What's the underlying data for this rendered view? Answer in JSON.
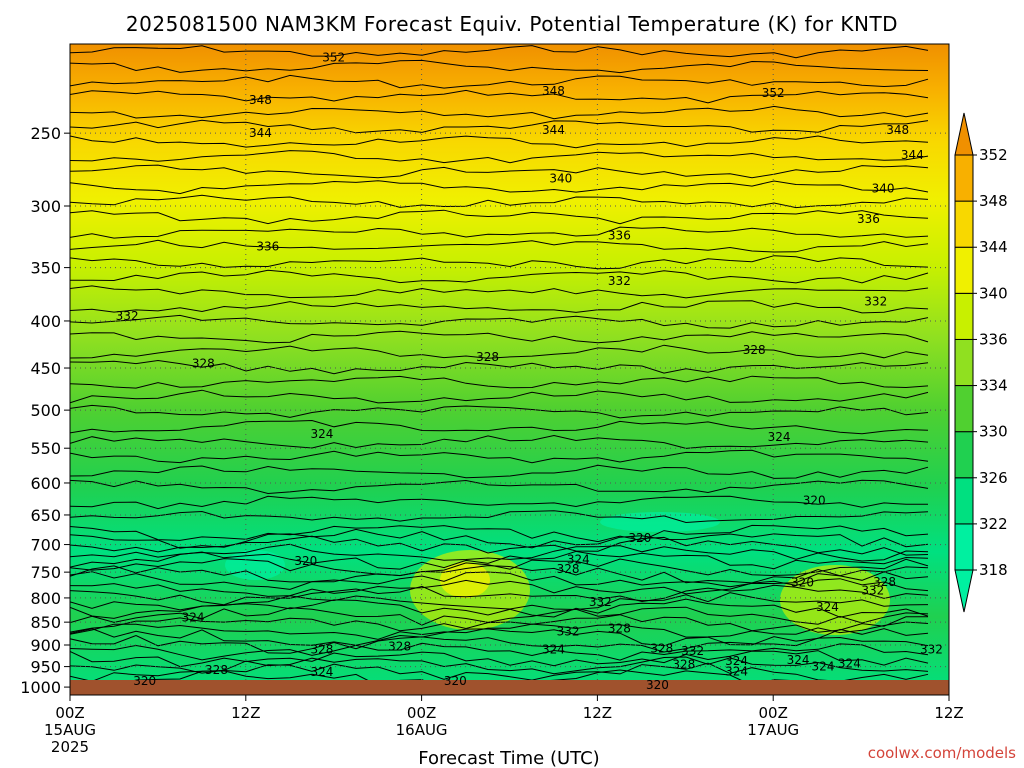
{
  "page": {
    "title": "2025081500 NAM3KM Forecast Equiv. Potential Temperature (K) for KNTD",
    "credit": "coolwx.com/models"
  },
  "chart_data": {
    "type": "heatmap",
    "title": "2025081500 NAM3KM Forecast Equiv. Potential Temperature (K) for KNTD",
    "xlabel": "Forecast Time (UTC)",
    "ylabel": "",
    "x_ticks": [
      {
        "hour": 0,
        "lines": [
          "00Z",
          "15AUG",
          "2025"
        ]
      },
      {
        "hour": 12,
        "lines": [
          "12Z"
        ]
      },
      {
        "hour": 24,
        "lines": [
          "00Z",
          "16AUG"
        ]
      },
      {
        "hour": 36,
        "lines": [
          "12Z"
        ]
      },
      {
        "hour": 48,
        "lines": [
          "00Z",
          "17AUG"
        ]
      },
      {
        "hour": 60,
        "lines": [
          "12Z"
        ]
      }
    ],
    "xlim": [
      0,
      60
    ],
    "y_ticks": [
      250,
      300,
      350,
      400,
      450,
      500,
      550,
      600,
      650,
      700,
      750,
      800,
      850,
      900,
      950,
      1000
    ],
    "ylim": [
      200,
      1020
    ],
    "y_scale": "log",
    "y_reversed": true,
    "grid": true,
    "ground_color": "#a0522d",
    "colorbar": {
      "levels": [
        318,
        322,
        326,
        330,
        334,
        336,
        340,
        344,
        348,
        352
      ],
      "colors": [
        "#00f0a0",
        "#00e080",
        "#20d050",
        "#50d030",
        "#90e020",
        "#c8f000",
        "#f0f000",
        "#f8d800",
        "#f8b000",
        "#f09000"
      ],
      "extend": "both",
      "placement": "right"
    },
    "contour_labels": [
      {
        "t": 18,
        "p": 207,
        "v": "352"
      },
      {
        "t": 13,
        "p": 230,
        "v": "348"
      },
      {
        "t": 33,
        "p": 225,
        "v": "348"
      },
      {
        "t": 48,
        "p": 226,
        "v": "352"
      },
      {
        "t": 56.5,
        "p": 248,
        "v": "348"
      },
      {
        "t": 13,
        "p": 250,
        "v": "344"
      },
      {
        "t": 33,
        "p": 248,
        "v": "344"
      },
      {
        "t": 57.5,
        "p": 264,
        "v": "344"
      },
      {
        "t": 33.5,
        "p": 280,
        "v": "340"
      },
      {
        "t": 55.5,
        "p": 287,
        "v": "340"
      },
      {
        "t": 13.5,
        "p": 332,
        "v": "336"
      },
      {
        "t": 37.5,
        "p": 323,
        "v": "336"
      },
      {
        "t": 54.5,
        "p": 310,
        "v": "336"
      },
      {
        "t": 3.9,
        "p": 395,
        "v": "332"
      },
      {
        "t": 37.5,
        "p": 362,
        "v": "332"
      },
      {
        "t": 55,
        "p": 381,
        "v": "332"
      },
      {
        "t": 9.1,
        "p": 445,
        "v": "328"
      },
      {
        "t": 28.5,
        "p": 438,
        "v": "328"
      },
      {
        "t": 46.7,
        "p": 430,
        "v": "328"
      },
      {
        "t": 17.2,
        "p": 531,
        "v": "324"
      },
      {
        "t": 48.4,
        "p": 535,
        "v": "324"
      },
      {
        "t": 50.8,
        "p": 627,
        "v": "320"
      },
      {
        "t": 38.9,
        "p": 689,
        "v": "320"
      },
      {
        "t": 16.1,
        "p": 729,
        "v": "320"
      },
      {
        "t": 34.7,
        "p": 727,
        "v": "324"
      },
      {
        "t": 34.0,
        "p": 744,
        "v": "328"
      },
      {
        "t": 50.0,
        "p": 770,
        "v": "320"
      },
      {
        "t": 55.6,
        "p": 769,
        "v": "328"
      },
      {
        "t": 54.8,
        "p": 785,
        "v": "332"
      },
      {
        "t": 36.2,
        "p": 808,
        "v": "332"
      },
      {
        "t": 51.7,
        "p": 818,
        "v": "324"
      },
      {
        "t": 8.4,
        "p": 840,
        "v": "324"
      },
      {
        "t": 37.5,
        "p": 864,
        "v": "328"
      },
      {
        "t": 34.0,
        "p": 870,
        "v": "332"
      },
      {
        "t": 17.2,
        "p": 910,
        "v": "328"
      },
      {
        "t": 22.5,
        "p": 903,
        "v": "328"
      },
      {
        "t": 33.0,
        "p": 910,
        "v": "324"
      },
      {
        "t": 40.4,
        "p": 908,
        "v": "328"
      },
      {
        "t": 42.5,
        "p": 914,
        "v": "332"
      },
      {
        "t": 58.8,
        "p": 910,
        "v": "332"
      },
      {
        "t": 49.7,
        "p": 935,
        "v": "324"
      },
      {
        "t": 45.5,
        "p": 937,
        "v": "324"
      },
      {
        "t": 41.9,
        "p": 945,
        "v": "328"
      },
      {
        "t": 53.2,
        "p": 943,
        "v": "324"
      },
      {
        "t": 51.4,
        "p": 950,
        "v": "324"
      },
      {
        "t": 10.0,
        "p": 958,
        "v": "328"
      },
      {
        "t": 17.2,
        "p": 963,
        "v": "324"
      },
      {
        "t": 45.5,
        "p": 962,
        "v": "324"
      },
      {
        "t": 5.1,
        "p": 985,
        "v": "320"
      },
      {
        "t": 26.3,
        "p": 985,
        "v": "320"
      },
      {
        "t": 40.1,
        "p": 995,
        "v": "320"
      }
    ]
  }
}
